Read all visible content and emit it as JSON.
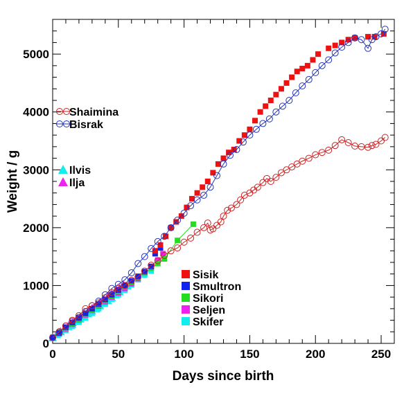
{
  "chart_data": {
    "type": "scatter",
    "xlabel": "Days since birth",
    "ylabel": "Weight / g",
    "xlim": [
      0,
      260
    ],
    "ylim": [
      0,
      5600
    ],
    "x_ticks": [
      0,
      50,
      100,
      150,
      200,
      250
    ],
    "y_ticks": [
      0,
      1000,
      2000,
      3000,
      4000,
      5000
    ],
    "grid": false,
    "legends": [
      {
        "placement": "left-upper",
        "entries": [
          "Shaimina",
          "Bisrak"
        ]
      },
      {
        "placement": "left-middle",
        "entries": [
          "Ilvis",
          "Ilja"
        ]
      },
      {
        "placement": "lower-middle",
        "entries": [
          "Sisik",
          "Smultron",
          "Sikori",
          "Seljen",
          "Skifer"
        ]
      }
    ],
    "series": [
      {
        "name": "Shaimina",
        "marker": "open-circle",
        "color": "#cc2222",
        "line": true,
        "x": [
          0,
          5,
          10,
          15,
          20,
          25,
          30,
          35,
          40,
          45,
          50,
          55,
          60,
          65,
          70,
          75,
          80,
          85,
          90,
          95,
          100,
          105,
          110,
          115,
          118,
          120,
          122,
          125,
          128,
          130,
          133,
          136,
          140,
          143,
          146,
          150,
          153,
          156,
          160,
          163,
          166,
          170,
          174,
          178,
          182,
          186,
          190,
          195,
          200,
          205,
          210,
          215,
          220,
          225,
          230,
          235,
          240,
          243,
          246,
          250,
          253
        ],
        "y": [
          100,
          200,
          300,
          400,
          480,
          600,
          650,
          700,
          790,
          880,
          950,
          1000,
          1090,
          1150,
          1250,
          1350,
          1430,
          1520,
          1600,
          1650,
          1750,
          1820,
          1920,
          2000,
          2080,
          1960,
          1980,
          2040,
          2100,
          2200,
          2300,
          2340,
          2400,
          2480,
          2560,
          2600,
          2650,
          2700,
          2780,
          2850,
          2800,
          2870,
          2950,
          3000,
          3050,
          3100,
          3150,
          3200,
          3260,
          3300,
          3340,
          3420,
          3520,
          3470,
          3410,
          3400,
          3390,
          3420,
          3440,
          3500,
          3560
        ]
      },
      {
        "name": "Bisrak",
        "marker": "open-circle",
        "color": "#2233bb",
        "line": true,
        "x": [
          0,
          5,
          10,
          15,
          20,
          25,
          30,
          35,
          40,
          45,
          50,
          55,
          60,
          65,
          70,
          75,
          80,
          85,
          90,
          95,
          100,
          105,
          110,
          115,
          120,
          125,
          130,
          135,
          140,
          145,
          150,
          155,
          160,
          165,
          170,
          175,
          180,
          185,
          190,
          195,
          200,
          205,
          210,
          215,
          220,
          225,
          230,
          235,
          240,
          243,
          246,
          250,
          253
        ],
        "y": [
          100,
          190,
          300,
          380,
          450,
          550,
          650,
          730,
          840,
          950,
          1020,
          1100,
          1220,
          1380,
          1500,
          1640,
          1760,
          1850,
          2000,
          2130,
          2250,
          2380,
          2480,
          2560,
          2700,
          2900,
          3100,
          3250,
          3350,
          3480,
          3600,
          3700,
          3800,
          3880,
          4000,
          4100,
          4200,
          4330,
          4450,
          4560,
          4680,
          4800,
          4900,
          5020,
          5120,
          5200,
          5280,
          5250,
          5100,
          5250,
          5300,
          5350,
          5430
        ]
      },
      {
        "name": "Sisik",
        "marker": "filled-square",
        "color": "#ee1111",
        "x": [
          78,
          82,
          86,
          90,
          94,
          98,
          102,
          106,
          110,
          114,
          118,
          122,
          126,
          130,
          134,
          138,
          142,
          146,
          150,
          154,
          158,
          162,
          166,
          170,
          174,
          178,
          182,
          186,
          190,
          194,
          198,
          202,
          210,
          215,
          220,
          225,
          230,
          240,
          245,
          252
        ],
        "y": [
          1600,
          1700,
          1850,
          2000,
          2100,
          2200,
          2350,
          2500,
          2600,
          2700,
          2800,
          2950,
          3100,
          3200,
          3300,
          3350,
          3500,
          3600,
          3700,
          3850,
          4000,
          4100,
          4200,
          4300,
          4400,
          4500,
          4600,
          4700,
          4750,
          4800,
          4900,
          5000,
          5100,
          5150,
          5200,
          5250,
          5280,
          5300,
          5300,
          5350
        ]
      },
      {
        "name": "Smultron",
        "marker": "filled-square",
        "color": "#1122ee",
        "x": [
          0,
          5,
          10,
          15,
          20,
          25,
          30,
          35,
          40,
          45,
          50,
          55,
          60,
          65,
          70,
          75,
          78,
          82
        ],
        "y": [
          100,
          180,
          280,
          360,
          440,
          520,
          600,
          680,
          760,
          840,
          920,
          1000,
          1080,
          1160,
          1240,
          1330,
          1550,
          1650
        ]
      },
      {
        "name": "Sikori",
        "marker": "filled-square",
        "color": "#22dd22",
        "line": true,
        "x": [
          0,
          5,
          10,
          15,
          20,
          25,
          30,
          35,
          40,
          45,
          50,
          55,
          60,
          65,
          70,
          75,
          80,
          85,
          95,
          107
        ],
        "y": [
          100,
          180,
          260,
          340,
          420,
          500,
          580,
          660,
          740,
          820,
          900,
          980,
          1060,
          1140,
          1220,
          1300,
          1380,
          1460,
          1780,
          2060
        ]
      },
      {
        "name": "Seljen",
        "marker": "filled-square",
        "color": "#ee22ee",
        "x": [
          0,
          5,
          10,
          15,
          20,
          25,
          30,
          35,
          40,
          45,
          50,
          55,
          60,
          65,
          70,
          75,
          80,
          84
        ],
        "y": [
          100,
          170,
          250,
          330,
          410,
          490,
          570,
          650,
          720,
          800,
          870,
          950,
          1030,
          1120,
          1220,
          1330,
          1440,
          1550
        ]
      },
      {
        "name": "Skifer",
        "marker": "filled-square",
        "color": "#11eeee",
        "x": [
          0,
          5,
          10,
          15,
          20,
          25,
          30,
          35,
          40,
          45,
          50,
          55,
          60,
          65,
          70,
          75
        ],
        "y": [
          100,
          160,
          230,
          300,
          370,
          440,
          520,
          600,
          680,
          760,
          840,
          920,
          1010,
          1100,
          1180,
          1250
        ]
      },
      {
        "name": "Ilvis",
        "marker": "filled-triangle",
        "color": "#11eeee",
        "x": [
          0,
          3,
          6,
          9,
          12,
          15,
          18,
          21,
          24,
          27,
          30,
          33,
          36,
          39,
          42,
          45,
          48,
          51,
          54,
          57
        ],
        "y": [
          100,
          150,
          200,
          240,
          290,
          330,
          380,
          420,
          470,
          510,
          560,
          600,
          650,
          700,
          740,
          790,
          840,
          890,
          940,
          990
        ]
      },
      {
        "name": "Ilja",
        "marker": "filled-triangle",
        "color": "#ee22ee",
        "x": [
          0,
          3,
          6,
          9,
          12,
          15,
          18,
          21,
          24,
          27,
          30,
          33,
          36,
          39,
          42,
          45,
          48,
          51,
          54
        ],
        "y": [
          100,
          160,
          210,
          260,
          310,
          360,
          410,
          460,
          510,
          560,
          610,
          660,
          710,
          760,
          810,
          860,
          910,
          960,
          1010
        ]
      }
    ]
  }
}
